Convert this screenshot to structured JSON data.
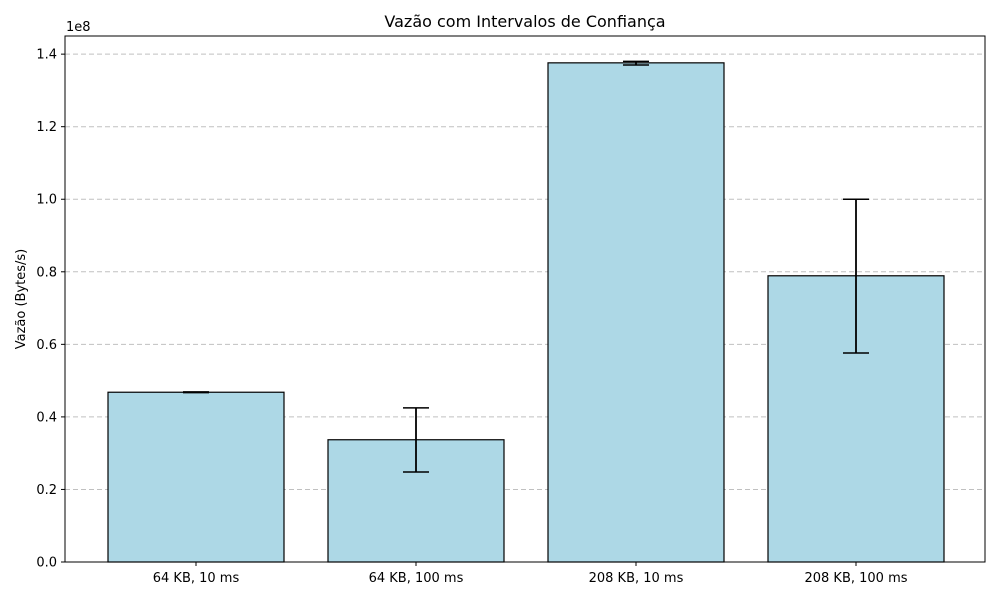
{
  "chart_data": {
    "type": "bar",
    "title": "Vazão com Intervalos de Confiança",
    "xlabel": "",
    "ylabel": "Vazão (Bytes/s)",
    "y_multiplier_label": "1e8",
    "categories": [
      "64 KB, 10 ms",
      "64 KB, 100 ms",
      "208 KB, 10 ms",
      "208 KB, 100 ms"
    ],
    "values": [
      0.468,
      0.337,
      1.376,
      0.789
    ],
    "error_low": [
      0.467,
      0.248,
      1.37,
      0.576
    ],
    "error_high": [
      0.469,
      0.425,
      1.38,
      1.0
    ],
    "ylim": [
      0,
      1.45
    ],
    "yticks": [
      0.0,
      0.2,
      0.4,
      0.6,
      0.8,
      1.0,
      1.2,
      1.4
    ],
    "ytick_labels": [
      "0.0",
      "0.2",
      "0.4",
      "0.6",
      "0.8",
      "1.0",
      "1.2",
      "1.4"
    ],
    "grid": "y-dashed",
    "bar_color": "#add8e6",
    "bar_edge_color": "#000000",
    "grid_color": "#c0c0c0"
  }
}
